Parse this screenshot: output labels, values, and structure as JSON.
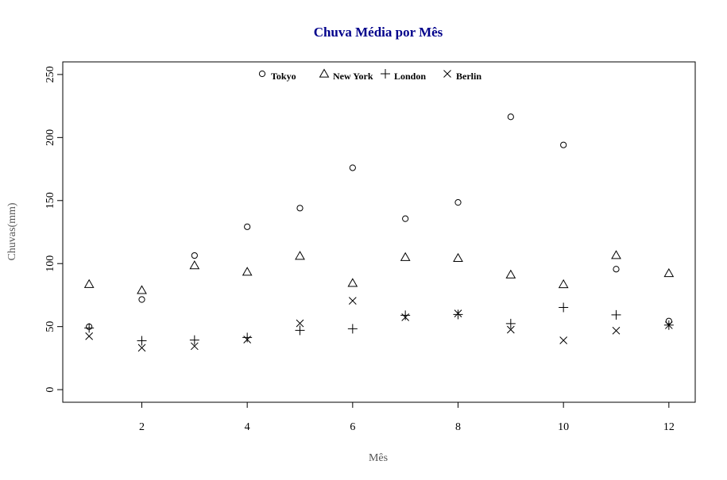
{
  "chart_data": {
    "type": "scatter",
    "title": "Chuva Média por Mês",
    "xlabel": "Mês",
    "ylabel": "Chuvas(mm)",
    "xlim": [
      0.5,
      12.5
    ],
    "ylim": [
      -10,
      260
    ],
    "xticks": [
      2,
      4,
      6,
      8,
      10,
      12
    ],
    "yticks": [
      0,
      50,
      100,
      150,
      200,
      250
    ],
    "grid": false,
    "legend_position": "top",
    "x": [
      1,
      2,
      3,
      4,
      5,
      6,
      7,
      8,
      9,
      10,
      11,
      12
    ],
    "series": [
      {
        "name": "Tokyo",
        "marker": "circle",
        "values": [
          49.9,
          71.5,
          106.4,
          129.2,
          144.0,
          176.0,
          135.6,
          148.5,
          216.4,
          194.1,
          95.6,
          54.4
        ]
      },
      {
        "name": "New York",
        "marker": "triangle",
        "values": [
          83.6,
          78.8,
          98.5,
          93.4,
          106.0,
          84.5,
          105.0,
          104.3,
          91.2,
          83.5,
          106.6,
          92.3
        ]
      },
      {
        "name": "London",
        "marker": "plus",
        "values": [
          48.9,
          38.8,
          39.3,
          41.4,
          47.0,
          48.3,
          59.0,
          59.6,
          52.4,
          65.2,
          59.3,
          51.2
        ]
      },
      {
        "name": "Berlin",
        "marker": "cross",
        "values": [
          42.4,
          33.2,
          34.5,
          39.7,
          52.6,
          70.5,
          57.4,
          60.4,
          47.6,
          39.1,
          46.8,
          51.1
        ]
      }
    ]
  }
}
